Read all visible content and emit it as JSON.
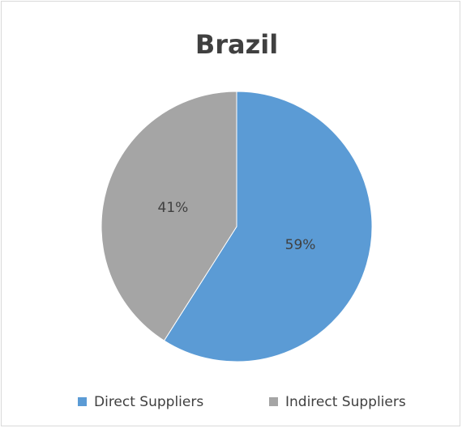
{
  "chart_data": {
    "type": "pie",
    "title": "Brazil",
    "categories": [
      "Direct Suppliers",
      "Indirect Suppliers"
    ],
    "values": [
      59,
      41
    ],
    "value_labels": [
      "59%",
      "41%"
    ],
    "colors": [
      "#5b9bd5",
      "#a5a5a5"
    ],
    "legend": "bottom"
  }
}
